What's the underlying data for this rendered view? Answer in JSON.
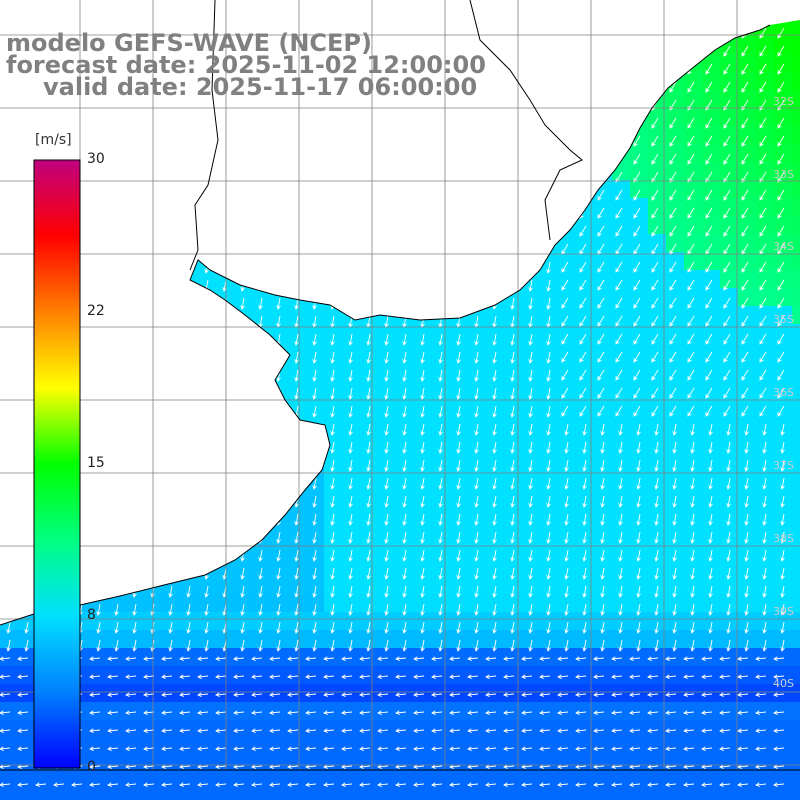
{
  "title": {
    "line1": "modelo GEFS-WAVE (NCEP)",
    "line2": "forecast date: 2025-11-02 12:00:00",
    "line3": "valid date: 2025-11-17 06:00:00"
  },
  "colorbar": {
    "unit": "[m/s]",
    "ticks": [
      {
        "label": "30",
        "value": 30
      },
      {
        "label": "22",
        "value": 22
      },
      {
        "label": "15",
        "value": 15
      },
      {
        "label": "8",
        "value": 8
      },
      {
        "label": "0",
        "value": 0
      }
    ],
    "stops": [
      "#0000ff",
      "#0080ff",
      "#00e0ff",
      "#00ff80",
      "#00ff00",
      "#ffff00",
      "#ff8000",
      "#ff0000",
      "#c00080"
    ]
  },
  "lat_labels": [
    "32S",
    "33S",
    "34S",
    "35S",
    "36S",
    "37S",
    "38S",
    "39S",
    "40S"
  ],
  "colors": {
    "land": "#ffffff",
    "coast": "#000000",
    "grid": "#808080",
    "arrow": "#ffffff"
  }
}
